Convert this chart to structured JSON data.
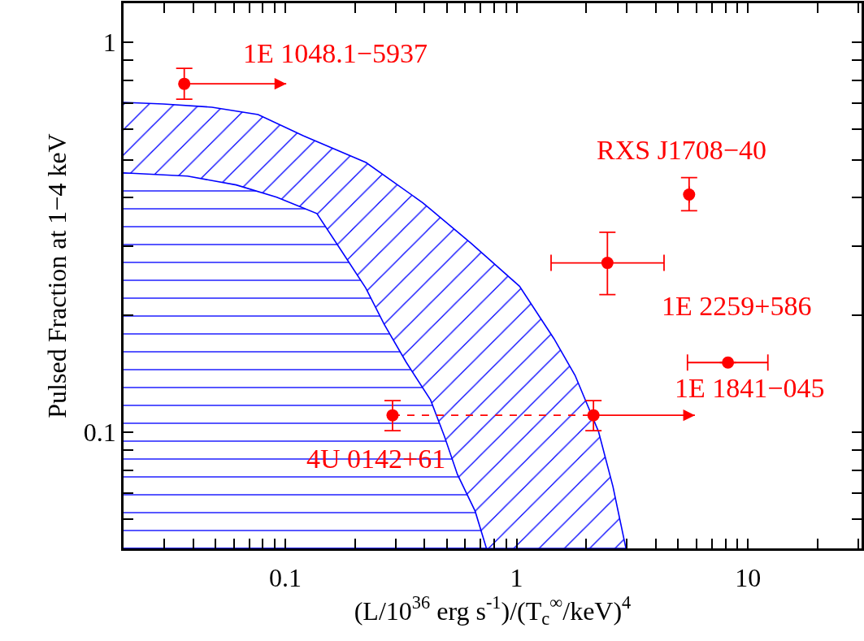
{
  "chart_data": {
    "type": "scatter",
    "xlabel": "(L/10$^{36}$ erg s$^{-1}$)/(T$_{c}$$^{∞}$/keV)$^{4}$",
    "ylabel": "Pulsed Fraction at 1−4 keV",
    "log": "xy",
    "grid": false,
    "marker": "circle",
    "xlim": [
      0.02,
      31
    ],
    "ylim": [
      0.0504,
      1.26
    ],
    "xticks": [
      {
        "value": 0.03,
        "label": null
      },
      {
        "value": 0.04,
        "label": null
      },
      {
        "value": 0.05,
        "label": null
      },
      {
        "value": 0.06,
        "label": null
      },
      {
        "value": 0.07,
        "label": null
      },
      {
        "value": 0.08,
        "label": null
      },
      {
        "value": 0.09,
        "label": null
      },
      0.1,
      {
        "value": 0.2,
        "label": null
      },
      {
        "value": 0.3,
        "label": null
      },
      {
        "value": 0.4,
        "label": null
      },
      {
        "value": 0.5,
        "label": null
      },
      {
        "value": 0.6,
        "label": null
      },
      {
        "value": 0.7,
        "label": null
      },
      {
        "value": 0.8,
        "label": null
      },
      {
        "value": 0.9,
        "label": null
      },
      1,
      {
        "value": 2,
        "label": null
      },
      {
        "value": 3,
        "label": null
      },
      {
        "value": 4,
        "label": null
      },
      {
        "value": 5,
        "label": null
      },
      {
        "value": 6,
        "label": null
      },
      {
        "value": 7,
        "label": null
      },
      {
        "value": 8,
        "label": null
      },
      {
        "value": 9,
        "label": null
      },
      10,
      {
        "value": 20,
        "label": null
      },
      {
        "value": 30,
        "label": null
      }
    ],
    "yticks": [
      {
        "value": 0.06,
        "label": null
      },
      {
        "value": 0.07,
        "label": null
      },
      {
        "value": 0.08,
        "label": null
      },
      {
        "value": 0.09,
        "label": null
      },
      0.1,
      {
        "value": 0.2,
        "label": null
      },
      {
        "value": 0.3,
        "label": null
      },
      {
        "value": 0.4,
        "label": null
      },
      {
        "value": 0.5,
        "label": null
      },
      {
        "value": 0.6,
        "label": null
      },
      {
        "value": 0.7,
        "label": null
      },
      {
        "value": 0.8,
        "label": null
      },
      {
        "value": 0.9,
        "label": null
      },
      1
    ],
    "series": [
      {
        "type": "area",
        "marker": "none",
        "color": "#0000ff",
        "x": [
          0.02,
          0.0297,
          0.0482,
          0.0763,
          0.12,
          0.2234,
          0.393,
          0.637,
          1.03,
          1.45,
          1.79,
          2.26,
          2.61,
          2.97
        ],
        "values": [
          0.702,
          0.695,
          0.682,
          0.653,
          0.576,
          0.492,
          0.388,
          0.305,
          0.237,
          0.174,
          0.14,
          0.1005,
          0.0726,
          0.0504
        ]
      },
      {
        "type": "area",
        "marker": "none",
        "color": "#0000ff",
        "x": [
          0.02,
          0.0378,
          0.0614,
          0.0919,
          0.137,
          0.175,
          0.223,
          0.268,
          0.334,
          0.425,
          0.488,
          0.555,
          0.662,
          0.741
        ],
        "values": [
          0.463,
          0.454,
          0.431,
          0.401,
          0.364,
          0.292,
          0.2344,
          0.189,
          0.151,
          0.121,
          0.0976,
          0.078,
          0.0628,
          0.0504
        ]
      },
      {
        "color": "#ff0000",
        "x": [
          0.0366
        ],
        "values": [
          0.783
        ],
        "errors": [
          [
            0.715,
            0.858
          ]
        ],
        "xerrors": [
          [
            0.0366,
            0.101
          ]
        ]
      },
      {
        "color": "#ff0000",
        "x": [
          5.57,
          2.47,
          8.2
        ],
        "values": [
          0.407,
          0.272,
          0.151
        ],
        "errors": [
          [
            0.37,
            0.45
          ],
          [
            0.2256,
            0.326
          ],
          null
        ],
        "xerrors": [
          null,
          [
            1.41,
            4.34
          ],
          [
            5.48,
            12.2
          ]
        ]
      },
      {
        "type": "line",
        "color": "#ff0000",
        "line_style": "dashed",
        "x": [
          0.291,
          2.15
        ],
        "values": [
          0.1106,
          0.1106
        ],
        "errors": [
          [
            0.101,
            0.1206
          ],
          [
            0.101,
            0.1206
          ]
        ],
        "xerrors": [
          null,
          [
            2.15,
            5.9
          ]
        ]
      }
    ],
    "annotations": [
      {
        "text": "1E 1048.1−5937",
        "x": 0.0366,
        "y": 0.783
      },
      {
        "text": "RXS J1708−40",
        "x": 5.57,
        "y": 0.407
      },
      {
        "text": "1E 2259+586",
        "x": 2.47,
        "y": 0.272
      },
      {
        "text": "1E 1841−045",
        "x": 8.2,
        "y": 0.151
      },
      {
        "text": "4U 0142+61",
        "x": 0.291,
        "y": 0.1106
      }
    ]
  }
}
